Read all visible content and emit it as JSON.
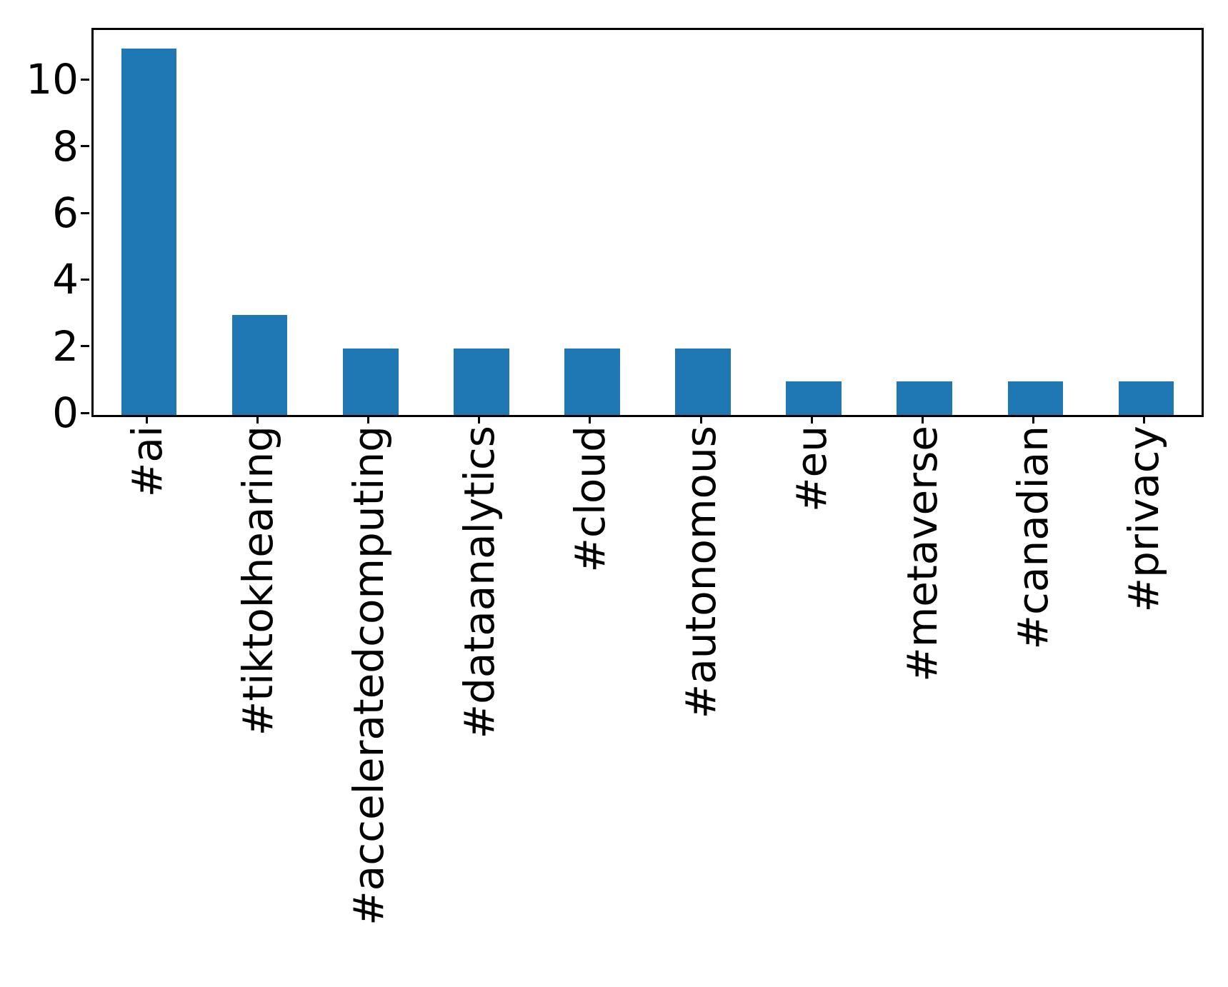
{
  "chart_data": {
    "type": "bar",
    "title": "",
    "xlabel": "",
    "ylabel": "",
    "categories": [
      "#ai",
      "#tiktokhearing",
      "#acceleratedcomputing",
      "#dataanalytics",
      "#cloud",
      "#autonomous",
      "#eu",
      "#metaverse",
      "#canadian",
      "#privacy"
    ],
    "values": [
      11,
      3,
      2,
      2,
      2,
      2,
      1,
      1,
      1,
      1
    ],
    "yticks": [
      0,
      2,
      4,
      6,
      8,
      10
    ],
    "ylim": [
      0,
      11.55
    ],
    "bar_color": "#1f77b4",
    "axis_color": "#000000",
    "text_color": "#000000",
    "background_color": "#ffffff",
    "grid": false,
    "legend_position": "none",
    "x_tick_rotation_deg": 90,
    "bar_width_fraction": 0.5
  }
}
